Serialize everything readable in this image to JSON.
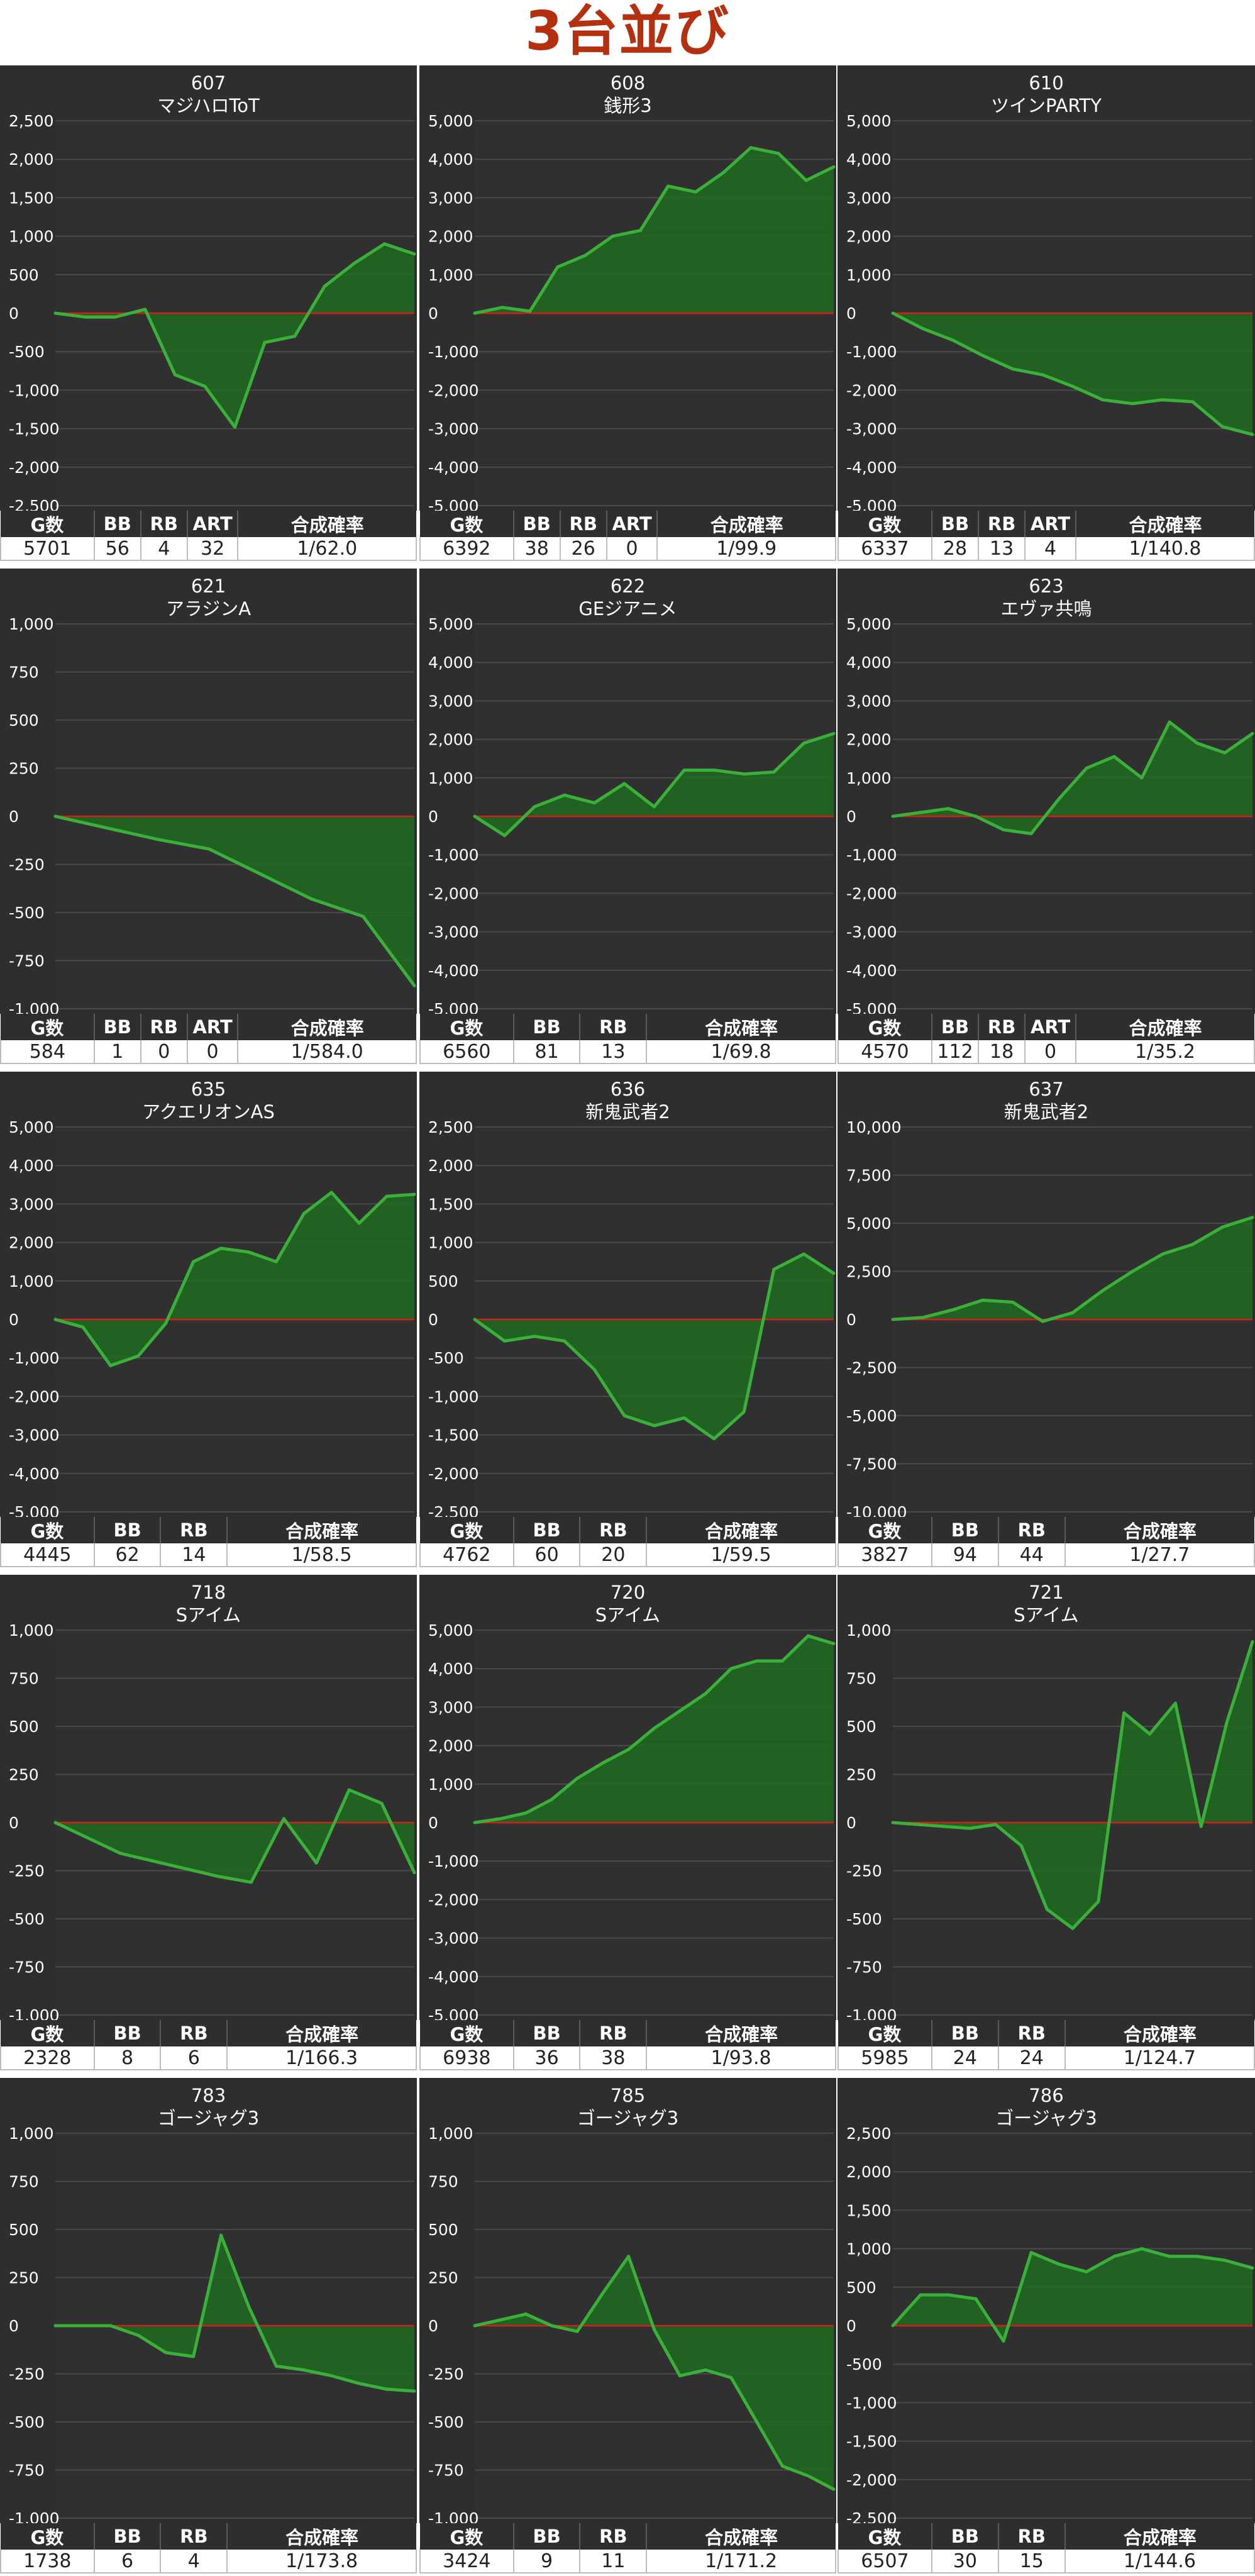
{
  "title": "3台並び",
  "colors": {
    "panel_bg": "#2e2e2e",
    "plot_bg": "#303030",
    "grid": "#4a4a4a",
    "zero_line": "#d0201a",
    "series_line": "#3ab03a",
    "fill": "#1e6a1e",
    "title_color": "#b5300f",
    "text": "#ffffff"
  },
  "chart_data": [
    {
      "type": "area",
      "number": "607",
      "name": "マジハロToT",
      "yticks": [
        2500,
        2000,
        1500,
        1000,
        500,
        0,
        -500,
        -1000,
        -1500,
        -2000,
        -2500
      ],
      "values": [
        0,
        -50,
        -50,
        50,
        -800,
        -950,
        -1480,
        -380,
        -300,
        350,
        650,
        900,
        770
      ],
      "table": {
        "headers": [
          "G数",
          "BB",
          "RB",
          "ART",
          "合成確率"
        ],
        "values": [
          "5701",
          "56",
          "4",
          "32",
          "1/62.0"
        ]
      }
    },
    {
      "type": "area",
      "number": "608",
      "name": "銭形3",
      "yticks": [
        5000,
        4000,
        3000,
        2000,
        1000,
        0,
        -1000,
        -2000,
        -3000,
        -4000,
        -5000
      ],
      "values": [
        0,
        150,
        50,
        1200,
        1500,
        2000,
        2150,
        3300,
        3150,
        3650,
        4300,
        4150,
        3450,
        3800
      ],
      "table": {
        "headers": [
          "G数",
          "BB",
          "RB",
          "ART",
          "合成確率"
        ],
        "values": [
          "6392",
          "38",
          "26",
          "0",
          "1/99.9"
        ]
      }
    },
    {
      "type": "area",
      "number": "610",
      "name": "ツインPARTY",
      "yticks": [
        5000,
        4000,
        3000,
        2000,
        1000,
        0,
        -1000,
        -2000,
        -3000,
        -4000,
        -5000
      ],
      "values": [
        0,
        -400,
        -700,
        -1100,
        -1450,
        -1600,
        -1900,
        -2250,
        -2350,
        -2250,
        -2300,
        -2950,
        -3150
      ],
      "table": {
        "headers": [
          "G数",
          "BB",
          "RB",
          "ART",
          "合成確率"
        ],
        "values": [
          "6337",
          "28",
          "13",
          "4",
          "1/140.8"
        ]
      }
    },
    {
      "type": "area",
      "number": "621",
      "name": "アラジンA",
      "yticks": [
        1000,
        750,
        500,
        250,
        0,
        -250,
        -500,
        -750,
        -1000
      ],
      "values": [
        0,
        -60,
        -120,
        -170,
        -300,
        -430,
        -520,
        -880
      ],
      "table": {
        "headers": [
          "G数",
          "BB",
          "RB",
          "ART",
          "合成確率"
        ],
        "values": [
          "584",
          "1",
          "0",
          "0",
          "1/584.0"
        ]
      }
    },
    {
      "type": "area",
      "number": "622",
      "name": "GEジアニメ",
      "yticks": [
        5000,
        4000,
        3000,
        2000,
        1000,
        0,
        -1000,
        -2000,
        -3000,
        -4000,
        -5000
      ],
      "values": [
        0,
        -500,
        250,
        550,
        350,
        850,
        250,
        1200,
        1200,
        1100,
        1150,
        1900,
        2150
      ],
      "table": {
        "headers": [
          "G数",
          "BB",
          "RB",
          "合成確率"
        ],
        "values": [
          "6560",
          "81",
          "13",
          "1/69.8"
        ]
      }
    },
    {
      "type": "area",
      "number": "623",
      "name": "エヴァ共鳴",
      "yticks": [
        5000,
        4000,
        3000,
        2000,
        1000,
        0,
        -1000,
        -2000,
        -3000,
        -4000,
        -5000
      ],
      "values": [
        0,
        100,
        200,
        0,
        -350,
        -450,
        450,
        1250,
        1550,
        1000,
        2450,
        1900,
        1650,
        2150
      ],
      "table": {
        "headers": [
          "G数",
          "BB",
          "RB",
          "ART",
          "合成確率"
        ],
        "values": [
          "4570",
          "112",
          "18",
          "0",
          "1/35.2"
        ]
      }
    },
    {
      "type": "area",
      "number": "635",
      "name": "アクエリオンAS",
      "yticks": [
        5000,
        4000,
        3000,
        2000,
        1000,
        0,
        -1000,
        -2000,
        -3000,
        -4000,
        -5000
      ],
      "values": [
        0,
        -200,
        -1200,
        -950,
        -100,
        1500,
        1850,
        1750,
        1500,
        2750,
        3300,
        2500,
        3200,
        3250
      ],
      "table": {
        "headers": [
          "G数",
          "BB",
          "RB",
          "合成確率"
        ],
        "values": [
          "4445",
          "62",
          "14",
          "1/58.5"
        ]
      }
    },
    {
      "type": "area",
      "number": "636",
      "name": "新鬼武者2",
      "yticks": [
        2500,
        2000,
        1500,
        1000,
        500,
        0,
        -500,
        -1000,
        -1500,
        -2000,
        -2500
      ],
      "values": [
        0,
        -280,
        -220,
        -280,
        -650,
        -1250,
        -1380,
        -1280,
        -1550,
        -1200,
        650,
        850,
        600
      ],
      "table": {
        "headers": [
          "G数",
          "BB",
          "RB",
          "合成確率"
        ],
        "values": [
          "4762",
          "60",
          "20",
          "1/59.5"
        ]
      }
    },
    {
      "type": "area",
      "number": "637",
      "name": "新鬼武者2",
      "yticks": [
        10000,
        7500,
        5000,
        2500,
        0,
        -2500,
        -5000,
        -7500,
        -10000
      ],
      "values": [
        0,
        100,
        500,
        1000,
        900,
        -100,
        350,
        1500,
        2500,
        3400,
        3900,
        4800,
        5300
      ],
      "table": {
        "headers": [
          "G数",
          "BB",
          "RB",
          "合成確率"
        ],
        "values": [
          "3827",
          "94",
          "44",
          "1/27.7"
        ]
      }
    },
    {
      "type": "area",
      "number": "718",
      "name": "Sアイム",
      "yticks": [
        1000,
        750,
        500,
        250,
        0,
        -250,
        -500,
        -750,
        -1000
      ],
      "values": [
        0,
        -80,
        -160,
        -200,
        -240,
        -280,
        -310,
        20,
        -210,
        170,
        100,
        -260
      ],
      "table": {
        "headers": [
          "G数",
          "BB",
          "RB",
          "合成確率"
        ],
        "values": [
          "2328",
          "8",
          "6",
          "1/166.3"
        ]
      }
    },
    {
      "type": "area",
      "number": "720",
      "name": "Sアイム",
      "yticks": [
        5000,
        4000,
        3000,
        2000,
        1000,
        0,
        -1000,
        -2000,
        -3000,
        -4000,
        -5000
      ],
      "values": [
        0,
        100,
        250,
        600,
        1150,
        1550,
        1900,
        2450,
        2900,
        3350,
        4000,
        4200,
        4200,
        4850,
        4650
      ],
      "table": {
        "headers": [
          "G数",
          "BB",
          "RB",
          "合成確率"
        ],
        "values": [
          "6938",
          "36",
          "38",
          "1/93.8"
        ]
      }
    },
    {
      "type": "area",
      "number": "721",
      "name": "Sアイム",
      "yticks": [
        1000,
        750,
        500,
        250,
        0,
        -250,
        -500,
        -750,
        -1000
      ],
      "values": [
        0,
        -10,
        -20,
        -30,
        -10,
        -120,
        -450,
        -550,
        -410,
        570,
        460,
        620,
        -20,
        520,
        940
      ],
      "table": {
        "headers": [
          "G数",
          "BB",
          "RB",
          "合成確率"
        ],
        "values": [
          "5985",
          "24",
          "24",
          "1/124.7"
        ]
      }
    },
    {
      "type": "area",
      "number": "783",
      "name": "ゴージャグ3",
      "yticks": [
        1000,
        750,
        500,
        250,
        0,
        -250,
        -500,
        -750,
        -1000
      ],
      "values": [
        0,
        0,
        0,
        -50,
        -140,
        -160,
        470,
        100,
        -210,
        -230,
        -260,
        -300,
        -330,
        -340
      ],
      "table": {
        "headers": [
          "G数",
          "BB",
          "RB",
          "合成確率"
        ],
        "values": [
          "1738",
          "6",
          "4",
          "1/173.8"
        ]
      }
    },
    {
      "type": "area",
      "number": "785",
      "name": "ゴージャグ3",
      "yticks": [
        1000,
        750,
        500,
        250,
        0,
        -250,
        -500,
        -750,
        -1000
      ],
      "values": [
        0,
        30,
        60,
        0,
        -30,
        170,
        360,
        -20,
        -260,
        -230,
        -270,
        -500,
        -730,
        -780,
        -850
      ],
      "table": {
        "headers": [
          "G数",
          "BB",
          "RB",
          "合成確率"
        ],
        "values": [
          "3424",
          "9",
          "11",
          "1/171.2"
        ]
      }
    },
    {
      "type": "area",
      "number": "786",
      "name": "ゴージャグ3",
      "yticks": [
        2500,
        2000,
        1500,
        1000,
        500,
        0,
        -500,
        -1000,
        -1500,
        -2000,
        -2500
      ],
      "values": [
        0,
        400,
        400,
        350,
        -200,
        950,
        800,
        700,
        900,
        1000,
        900,
        900,
        850,
        750
      ],
      "table": {
        "headers": [
          "G数",
          "BB",
          "RB",
          "合成確率"
        ],
        "values": [
          "6507",
          "30",
          "15",
          "1/144.6"
        ]
      }
    }
  ]
}
